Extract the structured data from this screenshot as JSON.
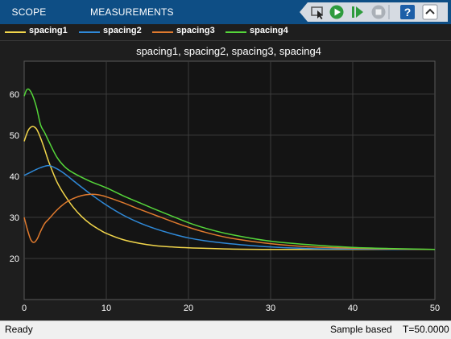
{
  "toolbar": {
    "tabs": [
      {
        "label": "SCOPE"
      },
      {
        "label": "MEASUREMENTS"
      }
    ],
    "buttons": [
      {
        "icon": "highlight-signal-icon"
      },
      {
        "icon": "run-icon"
      },
      {
        "icon": "step-forward-icon"
      },
      {
        "icon": "stop-icon"
      },
      {
        "icon": "help-icon"
      },
      {
        "icon": "collapse-icon"
      }
    ]
  },
  "colors": {
    "toolstrip": "#0e4e85",
    "plot_bg": "#141414",
    "grid": "#3c3c3c",
    "axis_text": "#ffffff",
    "spacing1": "#f2d64b",
    "spacing2": "#2f89d8",
    "spacing3": "#e07a2e",
    "spacing4": "#55d63a"
  },
  "status": {
    "left": "Ready",
    "mode": "Sample based",
    "time": "T=50.0000"
  },
  "chart_data": {
    "type": "line",
    "title": "spacing1, spacing2, spacing3, spacing4",
    "xlabel": "",
    "ylabel": "",
    "xlim": [
      0,
      50
    ],
    "ylim": [
      10,
      68
    ],
    "xticks": [
      0,
      10,
      20,
      30,
      40,
      50
    ],
    "yticks": [
      20,
      30,
      40,
      50,
      60
    ],
    "grid": true,
    "legend_position": "top",
    "series": [
      {
        "name": "spacing1",
        "color": "#f2d64b",
        "x": [
          0,
          0.5,
          1,
          1.5,
          2,
          2.5,
          3,
          4,
          5,
          6,
          7,
          8,
          9,
          10,
          12,
          14,
          16,
          18,
          20,
          25,
          30,
          35,
          40,
          45,
          50
        ],
        "y": [
          48.5,
          51.2,
          52.1,
          51.5,
          49.3,
          46.5,
          43.5,
          38.6,
          35.2,
          32.4,
          30.2,
          28.5,
          27.2,
          26.1,
          24.6,
          23.7,
          23.1,
          22.8,
          22.6,
          22.3,
          22.2,
          22.2,
          22.2,
          22.2,
          22.2
        ]
      },
      {
        "name": "spacing2",
        "color": "#2f89d8",
        "x": [
          0,
          1,
          2,
          3,
          4,
          5,
          6,
          8,
          10,
          12,
          14,
          16,
          18,
          20,
          22,
          25,
          30,
          35,
          40,
          45,
          50
        ],
        "y": [
          40.2,
          41.2,
          42.1,
          42.6,
          41.8,
          40.5,
          38.9,
          35.8,
          33.0,
          30.6,
          28.7,
          27.2,
          26.0,
          25.0,
          24.3,
          23.6,
          22.8,
          22.4,
          22.3,
          22.2,
          22.2
        ]
      },
      {
        "name": "spacing3",
        "color": "#e07a2e",
        "x": [
          0,
          0.4,
          0.8,
          1.2,
          1.6,
          2,
          2.5,
          3,
          4,
          5,
          6,
          7,
          8,
          9,
          10,
          12,
          14,
          16,
          18,
          20,
          22,
          25,
          30,
          35,
          40,
          45,
          50
        ],
        "y": [
          30.0,
          27.0,
          24.6,
          23.9,
          24.8,
          26.6,
          28.5,
          29.6,
          31.8,
          33.5,
          34.6,
          35.3,
          35.6,
          35.5,
          35.0,
          33.6,
          32.0,
          30.5,
          29.0,
          27.6,
          26.4,
          25.0,
          23.6,
          22.8,
          22.5,
          22.3,
          22.2
        ]
      },
      {
        "name": "spacing4",
        "color": "#55d63a",
        "x": [
          0,
          0.3,
          0.6,
          1,
          1.5,
          2,
          2.5,
          3,
          4,
          5,
          6,
          8,
          10,
          12,
          14,
          16,
          18,
          20,
          22,
          25,
          30,
          35,
          40,
          45,
          50
        ],
        "y": [
          59.5,
          61.0,
          61.1,
          59.8,
          56.8,
          52.5,
          50.6,
          48.5,
          44.6,
          42.2,
          40.8,
          38.8,
          37.2,
          35.3,
          33.6,
          31.9,
          30.3,
          28.7,
          27.4,
          25.9,
          24.2,
          23.3,
          22.7,
          22.4,
          22.2
        ]
      }
    ]
  }
}
